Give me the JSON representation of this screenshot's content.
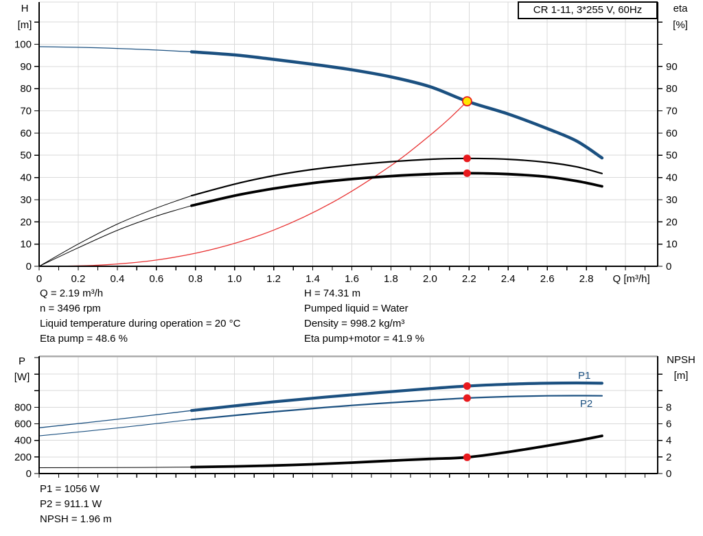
{
  "colors": {
    "curve_blue": "#1b5080",
    "curve_black": "#000000",
    "system_curve_red": "#e83030",
    "marker_red": "#e8191d",
    "duty_yellow": "#ffe600",
    "grid": "#d9d9d9",
    "axis": "#000000",
    "bottom_frame_gray": "#ababab",
    "text": "#000000"
  },
  "operating_point_info": {
    "left": [
      "Q = 2.19 m³/h",
      "n = 3496 rpm",
      "Liquid temperature during operation = 20 °C",
      "Eta pump = 48.6 %"
    ],
    "right": [
      "H = 74.31 m",
      "Pumped liquid = Water",
      "Density = 998.2 kg/m³",
      "Eta pump+motor = 41.9 %"
    ]
  },
  "power_info": [
    "P1 = 1056 W",
    "P2 = 911.1 W",
    "NPSH = 1.96 m"
  ],
  "chart_data": [
    {
      "type": "line",
      "name": "head-efficiency-chart",
      "title": "CR 1-11, 3*255 V, 60Hz",
      "xlabel": "Q [m³/h]",
      "ylabel_left": "H [m]",
      "ylabel_left_lines": [
        "H",
        "[m]"
      ],
      "ylabel_right": "eta [%]",
      "ylabel_right_lines": [
        "eta",
        "[%]"
      ],
      "xlim": [
        0,
        3.165
      ],
      "ylim_left": [
        0,
        119
      ],
      "ylim_right": [
        0,
        119
      ],
      "grid": {
        "x_step": 0.2,
        "x_max": 3.0,
        "y_step": 10,
        "y_max": 110
      },
      "frame": {
        "color": "#d9d9d9",
        "width": 1
      },
      "ticks": {
        "x_step": 0.1,
        "x_max": 3.1,
        "yl_step": 10,
        "yl_max": 110,
        "yr_step": 10,
        "yr_max": 110
      },
      "x_tick_labels": [
        {
          "v": 0,
          "t": "0"
        },
        {
          "v": 0.2,
          "t": "0.2"
        },
        {
          "v": 0.4,
          "t": "0.4"
        },
        {
          "v": 0.6,
          "t": "0.6"
        },
        {
          "v": 0.8,
          "t": "0.8"
        },
        {
          "v": 1.0,
          "t": "1.0"
        },
        {
          "v": 1.2,
          "t": "1.2"
        },
        {
          "v": 1.4,
          "t": "1.4"
        },
        {
          "v": 1.6,
          "t": "1.6"
        },
        {
          "v": 1.8,
          "t": "1.8"
        },
        {
          "v": 2.0,
          "t": "2.0"
        },
        {
          "v": 2.2,
          "t": "2.2"
        },
        {
          "v": 2.4,
          "t": "2.4"
        },
        {
          "v": 2.6,
          "t": "2.6"
        },
        {
          "v": 2.8,
          "t": "2.8"
        }
      ],
      "y_left_labels": [
        {
          "v": 0,
          "t": "0"
        },
        {
          "v": 10,
          "t": "10"
        },
        {
          "v": 20,
          "t": "20"
        },
        {
          "v": 30,
          "t": "30"
        },
        {
          "v": 40,
          "t": "40"
        },
        {
          "v": 50,
          "t": "50"
        },
        {
          "v": 60,
          "t": "60"
        },
        {
          "v": 70,
          "t": "70"
        },
        {
          "v": 80,
          "t": "80"
        },
        {
          "v": 90,
          "t": "90"
        },
        {
          "v": 100,
          "t": "100"
        }
      ],
      "y_right_labels": [
        {
          "v": 0,
          "t": "0"
        },
        {
          "v": 10,
          "t": "10"
        },
        {
          "v": 20,
          "t": "20"
        },
        {
          "v": 30,
          "t": "30"
        },
        {
          "v": 40,
          "t": "40"
        },
        {
          "v": 50,
          "t": "50"
        },
        {
          "v": 60,
          "t": "60"
        },
        {
          "v": 70,
          "t": "70"
        },
        {
          "v": 80,
          "t": "80"
        },
        {
          "v": 90,
          "t": "90"
        }
      ],
      "xlabel_pos": {
        "q": 3.03
      },
      "series": [
        {
          "name": "system-curve",
          "axis": "left",
          "color": "#e83030",
          "width": 1.3,
          "width_thin": 1.3,
          "split_q": null,
          "points": [
            [
              0,
              0
            ],
            [
              0.3,
              0.5
            ],
            [
              0.6,
              2.8
            ],
            [
              0.9,
              7.9
            ],
            [
              1.2,
              16.3
            ],
            [
              1.5,
              28.7
            ],
            [
              1.8,
              45.3
            ],
            [
              2.0,
              59.0
            ],
            [
              2.1,
              66.6
            ],
            [
              2.19,
              74.31
            ]
          ]
        },
        {
          "name": "eta-pump-curve",
          "axis": "right",
          "color": "#000000",
          "width": 2.2,
          "width_thin": 1,
          "split_q": 0.78,
          "points": [
            [
              0,
              0
            ],
            [
              0.2,
              10
            ],
            [
              0.4,
              19
            ],
            [
              0.6,
              26.2
            ],
            [
              0.78,
              31.8
            ],
            [
              1.0,
              37
            ],
            [
              1.2,
              40.8
            ],
            [
              1.4,
              43.6
            ],
            [
              1.6,
              45.6
            ],
            [
              1.8,
              47.1
            ],
            [
              2.0,
              48.2
            ],
            [
              2.19,
              48.6
            ],
            [
              2.4,
              48.2
            ],
            [
              2.6,
              46.8
            ],
            [
              2.75,
              44.8
            ],
            [
              2.88,
              41.8
            ]
          ]
        },
        {
          "name": "eta-pump-motor-curve",
          "axis": "right",
          "color": "#000000",
          "width": 3.8,
          "width_thin": 1,
          "split_q": 0.78,
          "points": [
            [
              0,
              0
            ],
            [
              0.2,
              8.3
            ],
            [
              0.4,
              16.2
            ],
            [
              0.6,
              22.6
            ],
            [
              0.78,
              27.3
            ],
            [
              1.0,
              31.8
            ],
            [
              1.2,
              35.0
            ],
            [
              1.4,
              37.5
            ],
            [
              1.6,
              39.3
            ],
            [
              1.8,
              40.6
            ],
            [
              2.0,
              41.5
            ],
            [
              2.19,
              41.9
            ],
            [
              2.4,
              41.5
            ],
            [
              2.6,
              40.3
            ],
            [
              2.75,
              38.4
            ],
            [
              2.88,
              36.0
            ]
          ]
        },
        {
          "name": "pump-head-curve",
          "axis": "left",
          "color": "#1b5080",
          "width": 4.5,
          "width_thin": 1.3,
          "split_q": 0.78,
          "points": [
            [
              0,
              98.9
            ],
            [
              0.3,
              98.4
            ],
            [
              0.6,
              97.4
            ],
            [
              0.78,
              96.6
            ],
            [
              1.0,
              95.2
            ],
            [
              1.2,
              93.2
            ],
            [
              1.4,
              91.0
            ],
            [
              1.6,
              88.5
            ],
            [
              1.8,
              85.3
            ],
            [
              2.0,
              80.9
            ],
            [
              2.19,
              74.31
            ],
            [
              2.4,
              68.6
            ],
            [
              2.6,
              62.0
            ],
            [
              2.75,
              56.4
            ],
            [
              2.88,
              48.8
            ]
          ]
        }
      ],
      "markers": [
        {
          "q": 2.19,
          "v": 48.6,
          "axis": "right",
          "style": "point"
        },
        {
          "q": 2.19,
          "v": 41.9,
          "axis": "right",
          "style": "point"
        },
        {
          "q": 2.19,
          "v": 74.31,
          "axis": "left",
          "style": "duty"
        }
      ],
      "series_labels": []
    },
    {
      "type": "line",
      "name": "power-npsh-chart",
      "title": "",
      "xlabel": "",
      "ylabel_left": "P [W]",
      "ylabel_left_lines": [
        "P",
        "[W]"
      ],
      "ylabel_right": "NPSH [m]",
      "ylabel_right_lines": [
        "NPSH",
        "[m]"
      ],
      "xlim": [
        0,
        3.165
      ],
      "ylim_left": [
        0,
        1416
      ],
      "ylim_right": [
        0,
        14.16
      ],
      "grid": {
        "x_step": 0.2,
        "x_max": 3.0,
        "y_step": 200,
        "y_max": 1200
      },
      "frame": {
        "color": "#ababab",
        "width": 2.5
      },
      "ticks": {
        "x_step": 0.1,
        "x_max": 3.1,
        "yl_step": 200,
        "yl_max": 1400,
        "yr_step": 2,
        "yr_max": 12
      },
      "x_tick_labels": [],
      "y_left_labels": [
        {
          "v": 0,
          "t": "0"
        },
        {
          "v": 200,
          "t": "200"
        },
        {
          "v": 400,
          "t": "400"
        },
        {
          "v": 600,
          "t": "600"
        },
        {
          "v": 800,
          "t": "800"
        }
      ],
      "y_right_labels": [
        {
          "v": 0,
          "t": "0"
        },
        {
          "v": 2,
          "t": "2"
        },
        {
          "v": 4,
          "t": "4"
        },
        {
          "v": 6,
          "t": "6"
        },
        {
          "v": 8,
          "t": "8"
        }
      ],
      "xlabel_pos": {
        "q": 3.03
      },
      "series": [
        {
          "name": "npsh-curve",
          "axis": "right",
          "color": "#000000",
          "width": 3.8,
          "width_thin": 1,
          "split_q": 0.78,
          "points": [
            [
              0,
              0.7
            ],
            [
              0.4,
              0.72
            ],
            [
              0.78,
              0.78
            ],
            [
              1.0,
              0.86
            ],
            [
              1.2,
              0.97
            ],
            [
              1.4,
              1.12
            ],
            [
              1.6,
              1.32
            ],
            [
              1.8,
              1.55
            ],
            [
              2.0,
              1.76
            ],
            [
              2.19,
              1.96
            ],
            [
              2.4,
              2.6
            ],
            [
              2.6,
              3.35
            ],
            [
              2.75,
              3.95
            ],
            [
              2.88,
              4.55
            ]
          ]
        },
        {
          "name": "p2-curve",
          "axis": "left",
          "color": "#1b5080",
          "width": 2.2,
          "width_thin": 1.1,
          "split_q": 0.78,
          "points": [
            [
              0,
              455
            ],
            [
              0.4,
              550
            ],
            [
              0.78,
              652
            ],
            [
              1.2,
              745
            ],
            [
              1.6,
              822
            ],
            [
              2.0,
              885
            ],
            [
              2.19,
              911.1
            ],
            [
              2.4,
              928
            ],
            [
              2.6,
              938
            ],
            [
              2.75,
              940
            ],
            [
              2.88,
              938
            ]
          ]
        },
        {
          "name": "p1-curve",
          "axis": "left",
          "color": "#1b5080",
          "width": 4.2,
          "width_thin": 1.3,
          "split_q": 0.78,
          "points": [
            [
              0,
              552
            ],
            [
              0.4,
              655
            ],
            [
              0.78,
              760
            ],
            [
              1.2,
              865
            ],
            [
              1.6,
              950
            ],
            [
              2.0,
              1025
            ],
            [
              2.19,
              1056
            ],
            [
              2.4,
              1078
            ],
            [
              2.6,
              1090
            ],
            [
              2.75,
              1093
            ],
            [
              2.88,
              1090
            ]
          ]
        }
      ],
      "markers": [
        {
          "q": 2.19,
          "v": 1056,
          "axis": "left",
          "style": "point"
        },
        {
          "q": 2.19,
          "v": 911.1,
          "axis": "left",
          "style": "point"
        },
        {
          "q": 2.19,
          "v": 1.96,
          "axis": "right",
          "style": "point"
        }
      ],
      "series_labels": [
        {
          "text": "P1",
          "q": 2.79,
          "v": 1185,
          "color": "#1b5080"
        },
        {
          "text": "P2",
          "q": 2.8,
          "v": 845,
          "color": "#1b5080"
        }
      ]
    }
  ]
}
